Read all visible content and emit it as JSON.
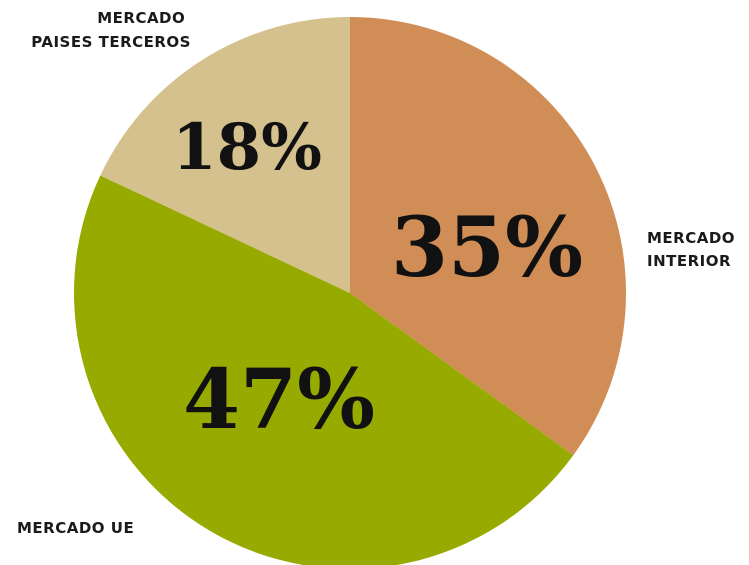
{
  "chart_data": {
    "type": "pie",
    "categories": [
      "MERCADO INTERIOR",
      "MERCADO UE",
      "MERCADO PAISES TERCEROS"
    ],
    "values": [
      35,
      47,
      18
    ],
    "value_labels": [
      "35%",
      "47%",
      "18%"
    ],
    "category_label_lines": [
      [
        "MERCADO",
        "INTERIOR"
      ],
      [
        "MERCADO UE"
      ],
      [
        "MERCADO",
        "PAISES TERCEROS"
      ]
    ],
    "colors": [
      "#d08d55",
      "#97aa00",
      "#d4c18d"
    ],
    "start_angle": "12 o'clock",
    "direction": "clockwise",
    "legend": "none",
    "title": ""
  }
}
